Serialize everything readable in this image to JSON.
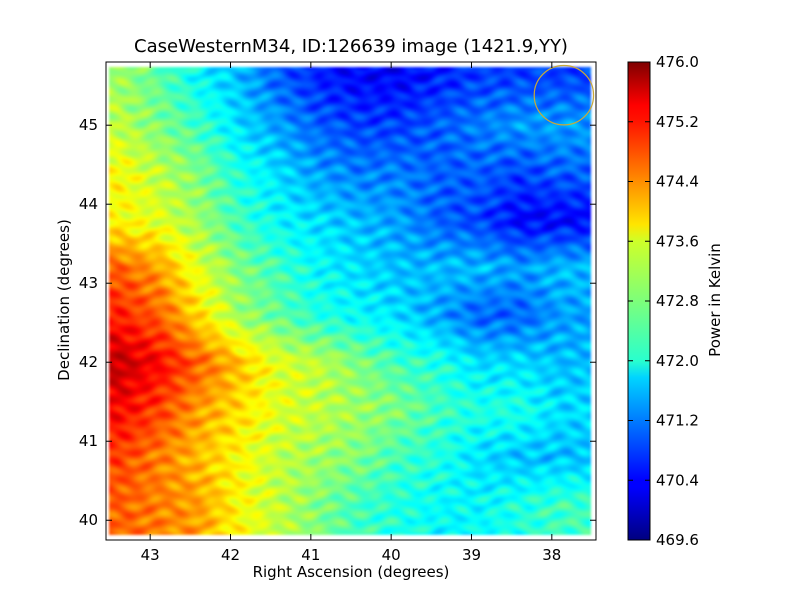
{
  "chart_data": {
    "type": "heatmap",
    "title": "CaseWesternM34, ID:126639 image (1421.9,YY)",
    "xlabel": "Right Ascension (degrees)",
    "ylabel": "Declination (degrees)",
    "xlim": [
      43.55,
      37.45
    ],
    "ylim": [
      39.75,
      45.8
    ],
    "x_ticks": [
      {
        "value": 43,
        "label": "43"
      },
      {
        "value": 42,
        "label": "42"
      },
      {
        "value": 41,
        "label": "41"
      },
      {
        "value": 40,
        "label": "40"
      },
      {
        "value": 39,
        "label": "39"
      },
      {
        "value": 38,
        "label": "38"
      }
    ],
    "y_ticks": [
      {
        "value": 40,
        "label": "40"
      },
      {
        "value": 41,
        "label": "41"
      },
      {
        "value": 42,
        "label": "42"
      },
      {
        "value": 43,
        "label": "43"
      },
      {
        "value": 44,
        "label": "44"
      },
      {
        "value": 45,
        "label": "45"
      }
    ],
    "colorbar": {
      "label": "Power in Kelvin",
      "min": 469.6,
      "max": 476.0,
      "colormap": "jet",
      "ticks": [
        {
          "value": 469.6,
          "label": "469.6"
        },
        {
          "value": 470.4,
          "label": "470.4"
        },
        {
          "value": 471.2,
          "label": "471.2"
        },
        {
          "value": 472.0,
          "label": "472.0"
        },
        {
          "value": 472.8,
          "label": "472.8"
        },
        {
          "value": 473.6,
          "label": "473.6"
        },
        {
          "value": 474.4,
          "label": "474.4"
        },
        {
          "value": 475.2,
          "label": "475.2"
        },
        {
          "value": 476.0,
          "label": "476.0"
        }
      ]
    },
    "ra_values": [
      43.4,
      42.9,
      42.4,
      41.9,
      41.4,
      40.9,
      40.4,
      39.9,
      39.4,
      38.9,
      38.4,
      37.9
    ],
    "dec_values": [
      45.6,
      45.0,
      44.4,
      43.8,
      43.2,
      42.6,
      42.0,
      41.4,
      40.8,
      40.2
    ],
    "values": [
      [
        473.0,
        472.6,
        472.0,
        471.6,
        471.0,
        470.6,
        470.4,
        470.4,
        470.6,
        470.8,
        470.8,
        470.8
      ],
      [
        473.2,
        472.8,
        472.4,
        471.8,
        471.4,
        471.0,
        470.8,
        470.8,
        471.0,
        471.2,
        471.4,
        471.4
      ],
      [
        473.6,
        473.2,
        472.8,
        472.2,
        471.8,
        471.4,
        471.2,
        471.2,
        471.0,
        471.0,
        470.8,
        471.0
      ],
      [
        473.6,
        473.4,
        473.0,
        472.4,
        472.0,
        471.8,
        471.6,
        471.4,
        471.0,
        470.8,
        470.4,
        470.4
      ],
      [
        474.6,
        474.2,
        473.4,
        472.8,
        472.4,
        472.0,
        471.8,
        471.6,
        471.6,
        471.6,
        471.4,
        471.6
      ],
      [
        475.0,
        474.6,
        473.8,
        473.0,
        472.6,
        472.2,
        472.0,
        471.8,
        471.4,
        471.0,
        471.0,
        471.4
      ],
      [
        475.6,
        475.2,
        474.6,
        474.0,
        473.4,
        473.2,
        472.8,
        472.4,
        472.2,
        471.8,
        471.8,
        471.6
      ],
      [
        475.2,
        474.8,
        474.2,
        473.8,
        473.4,
        473.2,
        473.0,
        472.8,
        472.4,
        472.2,
        472.2,
        471.8
      ],
      [
        474.8,
        474.4,
        474.0,
        473.6,
        473.2,
        473.0,
        472.8,
        472.4,
        472.2,
        471.8,
        471.6,
        471.6
      ],
      [
        474.6,
        474.4,
        474.2,
        473.6,
        473.2,
        472.8,
        472.4,
        472.2,
        472.0,
        472.0,
        472.2,
        472.4
      ]
    ],
    "annotation": {
      "shape": "circle",
      "ra": 37.85,
      "dec": 45.38,
      "radius_deg": 0.37,
      "color": "#c8a83a"
    },
    "grid": false
  }
}
